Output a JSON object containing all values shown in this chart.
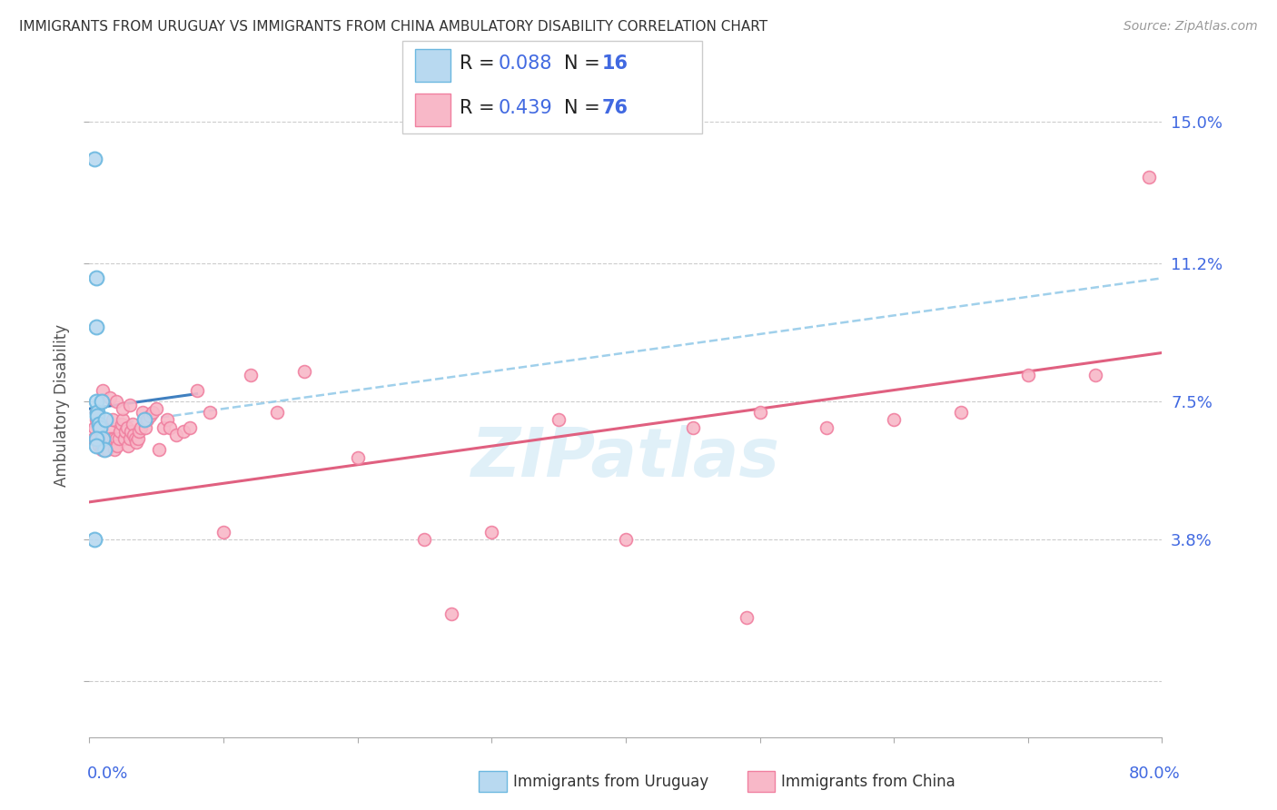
{
  "title": "IMMIGRANTS FROM URUGUAY VS IMMIGRANTS FROM CHINA AMBULATORY DISABILITY CORRELATION CHART",
  "source": "Source: ZipAtlas.com",
  "ylabel": "Ambulatory Disability",
  "yticks": [
    0.0,
    0.038,
    0.075,
    0.112,
    0.15
  ],
  "ytick_labels": [
    "",
    "3.8%",
    "7.5%",
    "11.2%",
    "15.0%"
  ],
  "xlim": [
    0.0,
    0.8
  ],
  "ylim": [
    -0.015,
    0.163
  ],
  "uruguay_color": "#6cb8e0",
  "uruguay_fill": "#b8d9f0",
  "china_color": "#f080a0",
  "china_fill": "#f8b8c8",
  "uruguay_R": 0.088,
  "uruguay_N": 16,
  "china_R": 0.439,
  "china_N": 76,
  "watermark": "ZIPatlas",
  "uru_x": [
    0.004,
    0.005,
    0.005,
    0.005,
    0.006,
    0.006,
    0.007,
    0.008,
    0.009,
    0.01,
    0.011,
    0.012,
    0.004,
    0.041,
    0.005,
    0.005
  ],
  "uru_y": [
    0.14,
    0.108,
    0.095,
    0.075,
    0.072,
    0.071,
    0.069,
    0.068,
    0.075,
    0.065,
    0.062,
    0.07,
    0.038,
    0.07,
    0.065,
    0.063
  ],
  "china_x": [
    0.003,
    0.004,
    0.005,
    0.006,
    0.007,
    0.008,
    0.009,
    0.01,
    0.011,
    0.012,
    0.013,
    0.014,
    0.015,
    0.016,
    0.017,
    0.018,
    0.019,
    0.02,
    0.021,
    0.022,
    0.023,
    0.024,
    0.025,
    0.026,
    0.027,
    0.028,
    0.029,
    0.03,
    0.031,
    0.032,
    0.033,
    0.034,
    0.035,
    0.036,
    0.037,
    0.038,
    0.04,
    0.042,
    0.043,
    0.045,
    0.047,
    0.05,
    0.052,
    0.055,
    0.058,
    0.06,
    0.065,
    0.07,
    0.075,
    0.08,
    0.09,
    0.1,
    0.12,
    0.14,
    0.16,
    0.2,
    0.25,
    0.3,
    0.35,
    0.4,
    0.45,
    0.5,
    0.55,
    0.6,
    0.65,
    0.7,
    0.75,
    0.79,
    0.005,
    0.01,
    0.015,
    0.02,
    0.025,
    0.03,
    0.27,
    0.49
  ],
  "china_y": [
    0.065,
    0.068,
    0.07,
    0.065,
    0.063,
    0.067,
    0.062,
    0.065,
    0.063,
    0.065,
    0.062,
    0.065,
    0.067,
    0.065,
    0.07,
    0.065,
    0.062,
    0.065,
    0.063,
    0.065,
    0.067,
    0.069,
    0.07,
    0.065,
    0.067,
    0.068,
    0.063,
    0.065,
    0.067,
    0.069,
    0.066,
    0.065,
    0.064,
    0.065,
    0.067,
    0.068,
    0.072,
    0.068,
    0.07,
    0.071,
    0.072,
    0.073,
    0.062,
    0.068,
    0.07,
    0.068,
    0.066,
    0.067,
    0.068,
    0.078,
    0.072,
    0.04,
    0.082,
    0.072,
    0.083,
    0.06,
    0.038,
    0.04,
    0.07,
    0.038,
    0.068,
    0.072,
    0.068,
    0.07,
    0.072,
    0.082,
    0.082,
    0.135,
    0.072,
    0.078,
    0.076,
    0.075,
    0.073,
    0.074,
    0.018,
    0.017
  ],
  "uru_trend_x": [
    0.0,
    0.08
  ],
  "uru_trend_y": [
    0.073,
    0.077
  ],
  "dashed_trend_x": [
    0.0,
    0.8
  ],
  "dashed_trend_y": [
    0.068,
    0.108
  ],
  "china_trend_x": [
    0.0,
    0.8
  ],
  "china_trend_y": [
    0.048,
    0.088
  ]
}
